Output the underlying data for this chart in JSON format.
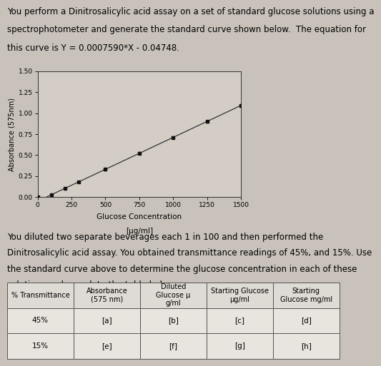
{
  "header_text_lines": [
    "You perform a Dinitrosalicylic acid assay on a set of standard glucose solutions using a",
    "spectrophotometer and generate the standard curve shown below.  The equation for",
    "this curve is Y = 0.0007590*X - 0.04748."
  ],
  "body_text_lines": [
    "You diluted two separate beverages each 1 in 100 and then performed the",
    "Dinitrosalicylic acid assay. You obtained transmittance readings of 45%, and 15%. Use",
    "the standard curve above to determine the glucose concentration in each of these",
    "solutions and complete the table below."
  ],
  "equation_m": 0.000759,
  "equation_b": -0.04748,
  "x_data": [
    0,
    100,
    200,
    300,
    500,
    750,
    1000,
    1250,
    1500
  ],
  "x_ticks": [
    0,
    250,
    500,
    750,
    1000,
    1250,
    1500
  ],
  "y_ticks": [
    0.0,
    0.25,
    0.5,
    0.75,
    1.0,
    1.25,
    1.5
  ],
  "xlabel_line1": "Glucose Concentration",
  "xlabel_line2": "[μg/ml]",
  "ylabel": "Absorbance (575nm)",
  "line_color": "#333333",
  "marker_color": "#111111",
  "plot_bg": "#d4cdc6",
  "fig_bg": "#c8c2ba",
  "table_header_row": [
    "% Transmittance",
    "Absorbance\n(575 nm)",
    "Diluted\nGlucose μ\ng/ml",
    "Starting Glucose\nμg/ml",
    "Starting\nGlucose mg/ml"
  ],
  "table_rows": [
    [
      "45%",
      "[a]",
      "[b]",
      "[c]",
      "[d]"
    ],
    [
      "15%",
      "[e]",
      "[f]",
      "[g]",
      "[h]"
    ]
  ]
}
